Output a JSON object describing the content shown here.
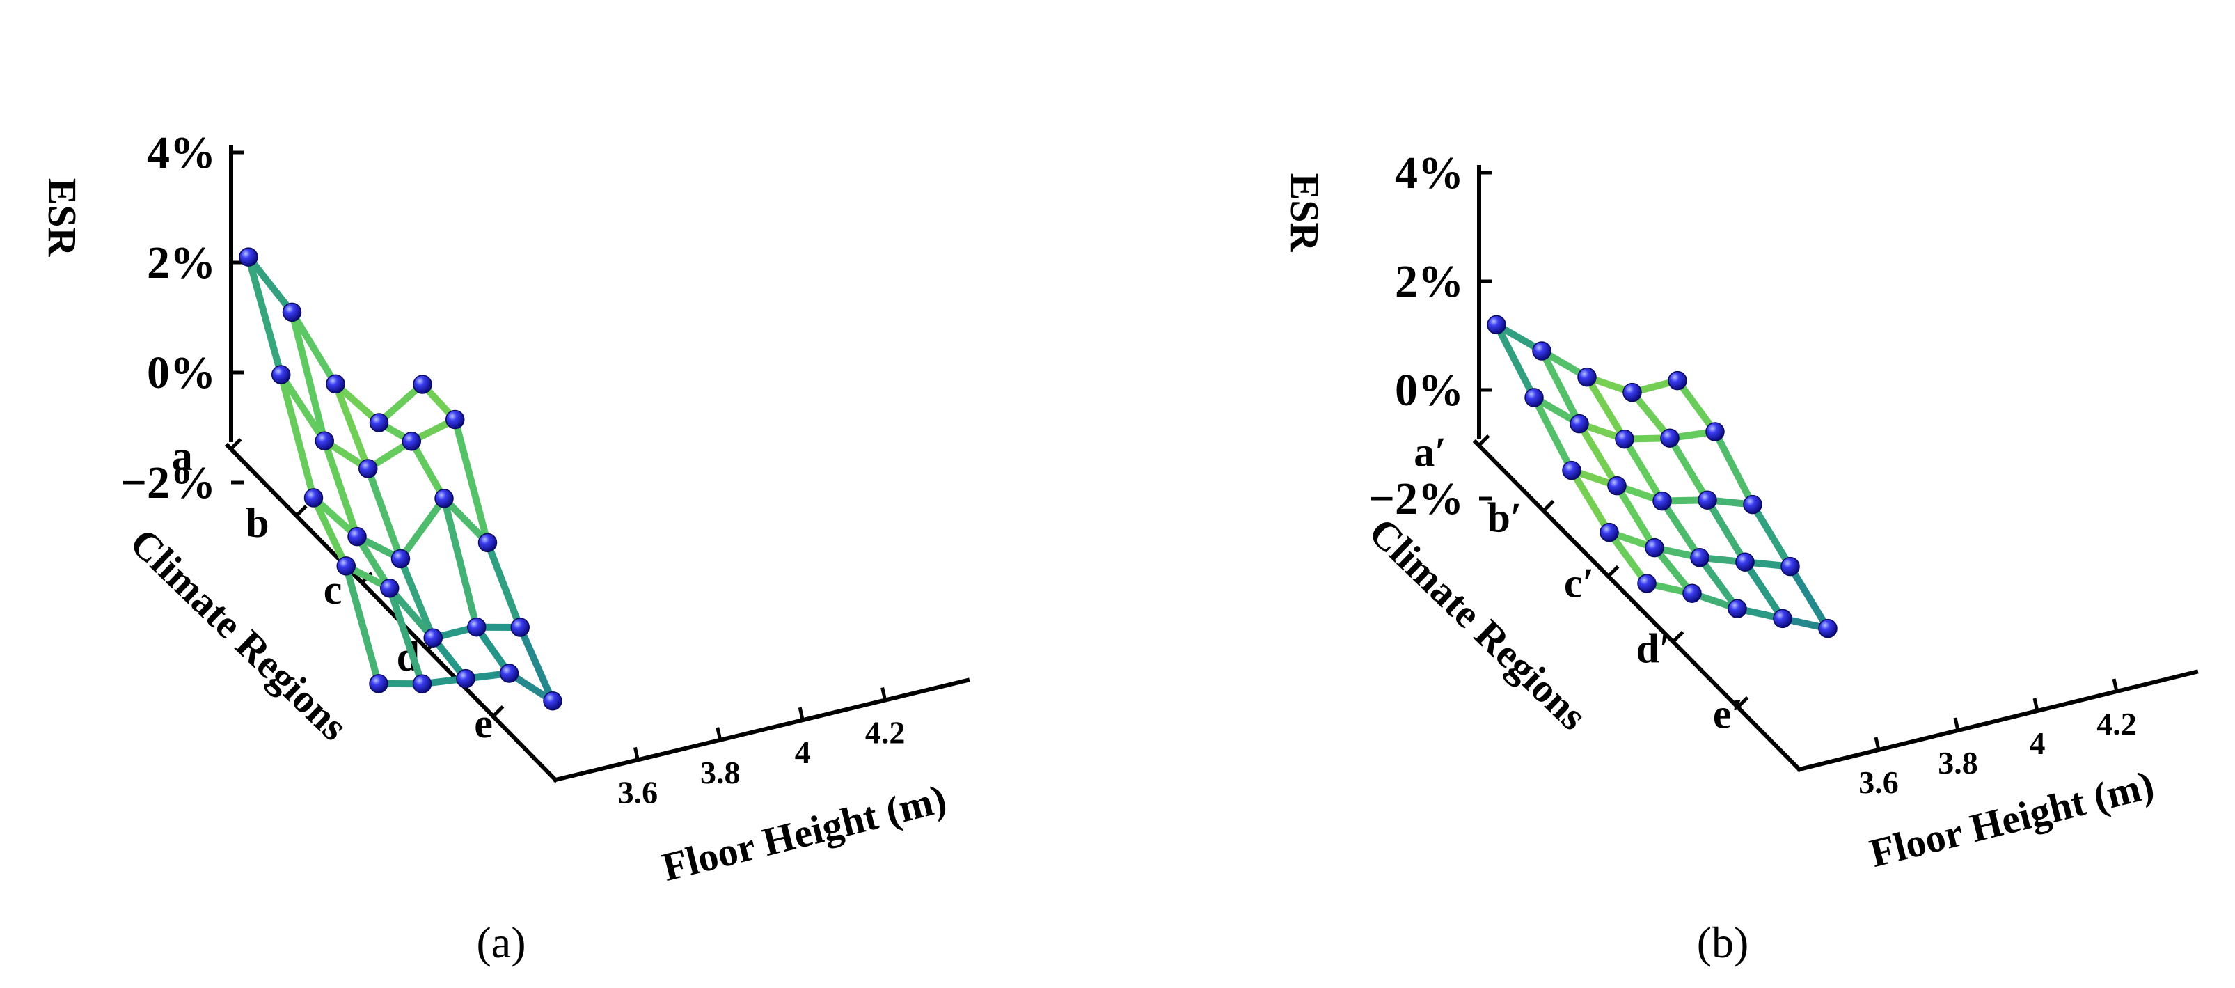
{
  "chart_data": [
    {
      "type": "3d-wireframe",
      "panel_label": "(a)",
      "zlabel": "ESR",
      "ylabel": "Climate Regions",
      "xlabel": "Floor Height (m)",
      "zlim": [
        "-3%",
        "4%"
      ],
      "z_ticks": [
        "4%",
        "2%",
        "0%",
        "−2%"
      ],
      "y_categories": [
        "a",
        "b",
        "c",
        "d",
        "e"
      ],
      "x_ticks": [
        "3.6",
        "3.8",
        "4",
        "4.2"
      ],
      "x_values": [
        3.4,
        3.6,
        3.8,
        4.0,
        4.2
      ],
      "series": [
        {
          "name": "a",
          "values": [
            2.1,
            0.9,
            -0.6,
            -1.5,
            -1.0
          ]
        },
        {
          "name": "b",
          "values": [
            0.6,
            -0.8,
            -1.5,
            -1.2,
            -1.0
          ]
        },
        {
          "name": "c",
          "values": [
            -1.0,
            -1.9,
            -2.5,
            -1.6,
            -2.6
          ]
        },
        {
          "name": "d",
          "values": [
            -1.6,
            -2.2,
            -3.3,
            -3.3,
            -3.5
          ]
        },
        {
          "name": "e",
          "values": [
            -3.1,
            -3.3,
            -3.4,
            -3.5,
            -4.2
          ]
        }
      ]
    },
    {
      "type": "3d-wireframe",
      "panel_label": "(b)",
      "zlabel": "ESR",
      "ylabel": "Climate Regions",
      "xlabel": "Floor Height (m)",
      "zlim": [
        "-3%",
        "4%"
      ],
      "z_ticks": [
        "4%",
        "2%",
        "0%",
        "−2%"
      ],
      "y_categories": [
        "a′",
        "b′",
        "c′",
        "d′",
        "e′"
      ],
      "x_ticks": [
        "3.6",
        "3.8",
        "4",
        "4.2"
      ],
      "x_values": [
        3.4,
        3.6,
        3.8,
        4.0,
        4.2
      ],
      "series": [
        {
          "name": "a′",
          "values": [
            1.2,
            0.5,
            -0.2,
            -0.7,
            -0.7
          ]
        },
        {
          "name": "b′",
          "values": [
            0.5,
            -0.2,
            -0.7,
            -0.9,
            -1.0
          ]
        },
        {
          "name": "c′",
          "values": [
            -0.2,
            -0.7,
            -1.2,
            -1.4,
            -1.7
          ]
        },
        {
          "name": "d′",
          "values": [
            -0.7,
            -1.2,
            -1.6,
            -1.9,
            -2.2
          ]
        },
        {
          "name": "e′",
          "values": [
            -1.0,
            -1.4,
            -1.9,
            -2.3,
            -2.7
          ]
        }
      ]
    }
  ]
}
